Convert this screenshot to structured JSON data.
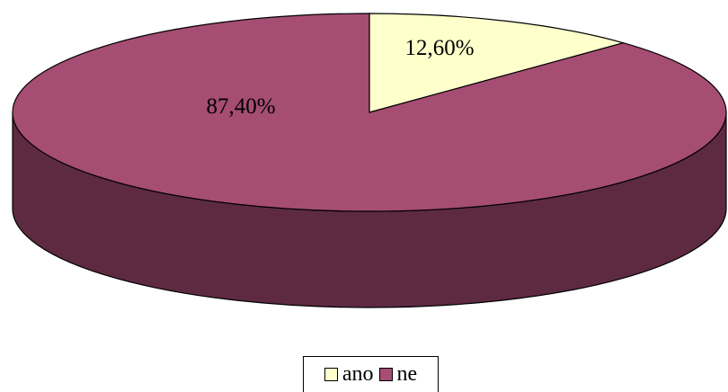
{
  "chart_data": {
    "type": "pie",
    "style": "3d",
    "slices": [
      {
        "label": "ano",
        "value": 12.6,
        "display": "12,60%",
        "color": "#FFFFCC"
      },
      {
        "label": "ne",
        "value": 87.4,
        "display": "87,40%",
        "color": "#A64D73"
      }
    ],
    "side_color": "#5E2A42",
    "legend": {
      "position": "bottom",
      "entries": [
        "ano",
        "ne"
      ]
    }
  }
}
